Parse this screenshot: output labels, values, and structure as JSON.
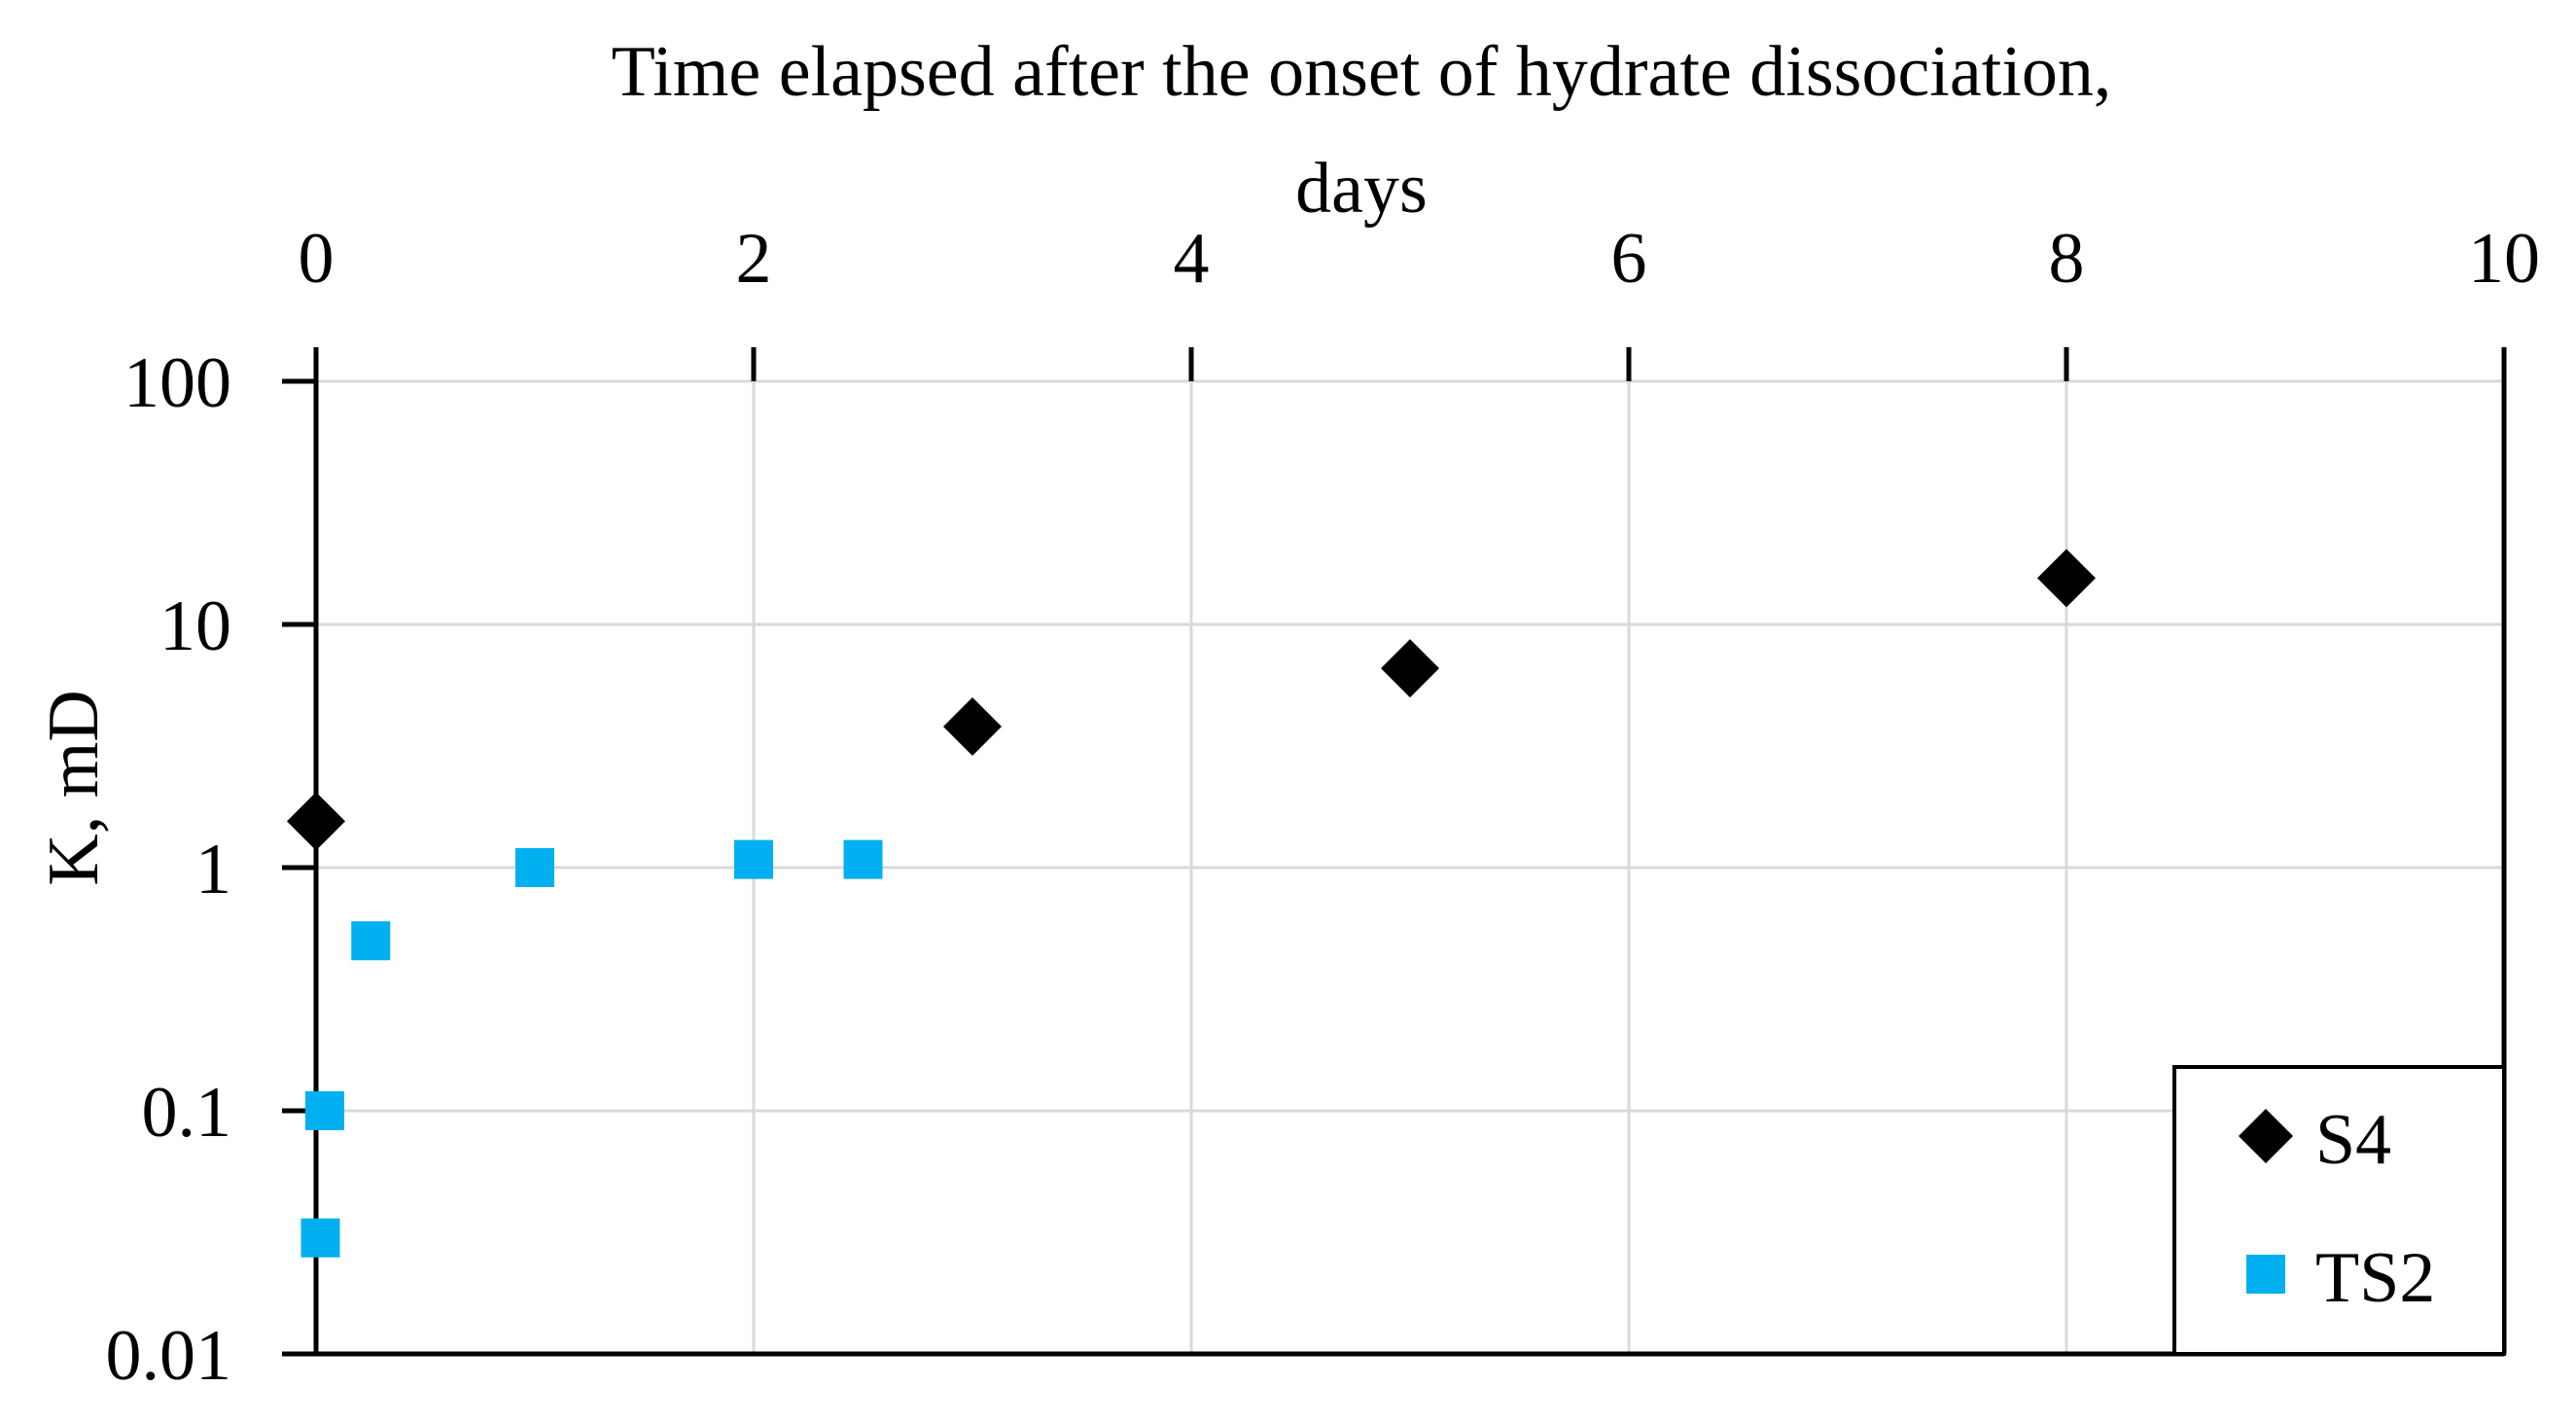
{
  "chart_data": {
    "type": "scatter",
    "title": "",
    "xlabel": "Time elapsed after the onset of hydrate dissociation, days",
    "xlabel_lines": [
      "Time elapsed after the onset of hydrate dissociation,",
      "days"
    ],
    "ylabel": "K, mD",
    "x_axis_position": "top",
    "xlim": [
      0,
      10
    ],
    "xticks": [
      0,
      2,
      4,
      6,
      8,
      10
    ],
    "xtick_labels": [
      "0",
      "2",
      "4",
      "6",
      "8",
      "10"
    ],
    "ylim": [
      0.01,
      100
    ],
    "y_scale": "log",
    "yticks": [
      0.01,
      0.1,
      1,
      10,
      100
    ],
    "ytick_labels": [
      "0.01",
      "0.1",
      "1",
      "10",
      "100"
    ],
    "grid": true,
    "legend_position": "bottom-right",
    "series": [
      {
        "name": "S4",
        "marker": "diamond",
        "color": "#000000",
        "points": [
          {
            "x": 0,
            "y": 1.55
          },
          {
            "x": 3,
            "y": 3.8
          },
          {
            "x": 5,
            "y": 6.6
          },
          {
            "x": 8,
            "y": 15.5
          }
        ]
      },
      {
        "name": "TS2",
        "marker": "square",
        "color": "#00b0f0",
        "points": [
          {
            "x": 0.02,
            "y": 0.03
          },
          {
            "x": 0.04,
            "y": 0.1
          },
          {
            "x": 0.25,
            "y": 0.5
          },
          {
            "x": 1,
            "y": 1.0
          },
          {
            "x": 2,
            "y": 1.08
          },
          {
            "x": 2.5,
            "y": 1.08
          }
        ]
      }
    ]
  }
}
